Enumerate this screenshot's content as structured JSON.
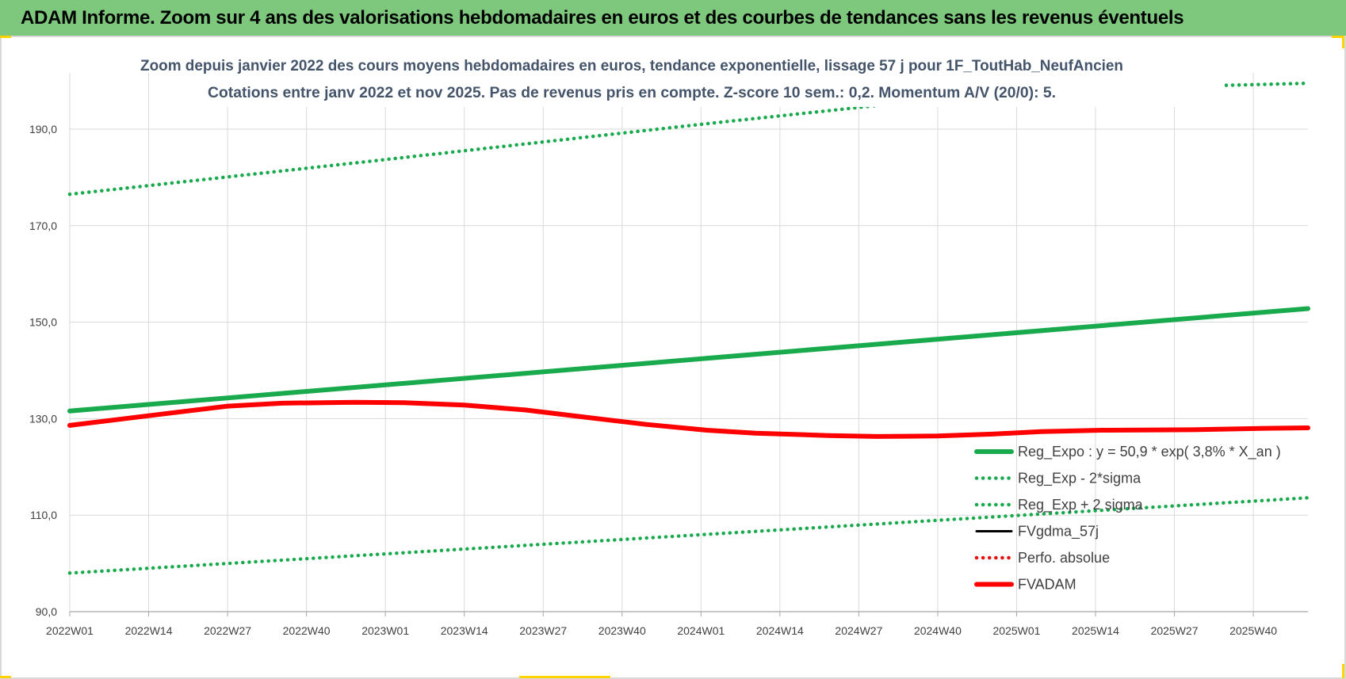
{
  "banner": {
    "title": "ADAM Informe. Zoom sur 4 ans des valorisations hebdomadaires en euros et des courbes de tendances sans les revenus éventuels"
  },
  "chart_data": {
    "type": "line",
    "title": "Zoom depuis janvier 2022 des cours moyens hebdomadaires en euros, tendance exponentielle, lissage 57 j pour 1F_ToutHab_NeufAncien",
    "subtitle": "Cotations entre janv 2022 et nov 2025. Pas de revenus pris en compte. Z-score 10 sem.: 0,2. Momentum A/V (20/0): 5.",
    "xlabel": "",
    "ylabel": "",
    "ylim": [
      90,
      200
    ],
    "y_ticks": [
      "90,0",
      "110,0",
      "130,0",
      "150,0",
      "170,0",
      "190,0"
    ],
    "x_ticks": [
      "2022W01",
      "2022W14",
      "2022W27",
      "2022W40",
      "2023W01",
      "2023W14",
      "2023W27",
      "2023W40",
      "2024W01",
      "2024W14",
      "2024W27",
      "2024W40",
      "2025W01",
      "2025W14",
      "2025W27",
      "2025W40"
    ],
    "x_tick_weeks": [
      0,
      13,
      26,
      39,
      52,
      65,
      78,
      91,
      104,
      117,
      130,
      143,
      156,
      169,
      182,
      195
    ],
    "x_range_weeks": [
      0,
      204
    ],
    "grid": true,
    "legend_position": "bottom-right",
    "series": [
      {
        "name": "Reg_Expo : y = 50,9 * exp( 3,8% *  X_an )",
        "color": "#1aaa4e",
        "style": "solid-thick",
        "x_weeks": [
          0,
          204
        ],
        "values": [
          131.6,
          152.8
        ]
      },
      {
        "name": "Reg_Exp - 2*sigma",
        "color": "#1aaa4e",
        "style": "dotted",
        "x_weeks": [
          0,
          204
        ],
        "values": [
          98.0,
          113.6
        ]
      },
      {
        "name": "Reg_Exp + 2 sigma",
        "color": "#1aaa4e",
        "style": "dotted",
        "x_weeks": [
          0,
          52,
          104,
          156,
          204
        ],
        "values": [
          176.5,
          183.7,
          191.0,
          198.0,
          199.5
        ]
      },
      {
        "name": "FVgdma_57j",
        "color": "#000000",
        "style": "solid",
        "x_weeks": [
          0,
          13,
          26,
          35,
          47,
          55,
          65,
          75,
          85,
          95,
          105,
          113,
          125,
          133,
          143,
          152,
          160,
          170,
          185,
          197,
          204
        ],
        "values": [
          128.6,
          130.6,
          132.6,
          133.2,
          133.4,
          133.3,
          132.8,
          131.8,
          130.3,
          128.8,
          127.6,
          127.0,
          126.5,
          126.3,
          126.4,
          126.8,
          127.3,
          127.6,
          127.7,
          128.0,
          128.1
        ]
      },
      {
        "name": "Perfo. absolue",
        "color": "#e81010",
        "style": "dotted",
        "x_weeks": [],
        "values": []
      },
      {
        "name": "FVADAM",
        "color": "#ff0000",
        "style": "solid-thick",
        "x_weeks": [
          0,
          13,
          26,
          35,
          47,
          55,
          65,
          75,
          85,
          95,
          105,
          113,
          125,
          133,
          143,
          152,
          160,
          170,
          185,
          197,
          204
        ],
        "values": [
          128.6,
          130.6,
          132.6,
          133.2,
          133.4,
          133.3,
          132.8,
          131.8,
          130.3,
          128.8,
          127.6,
          127.0,
          126.5,
          126.3,
          126.4,
          126.8,
          127.3,
          127.6,
          127.7,
          128.0,
          128.1
        ]
      }
    ]
  }
}
